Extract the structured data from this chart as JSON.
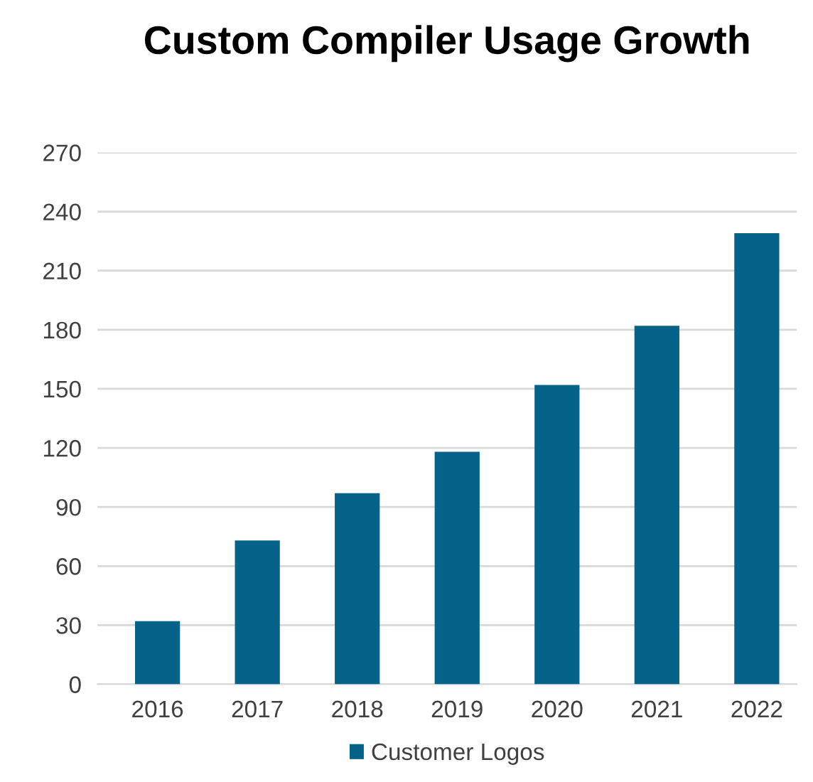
{
  "chart_data": {
    "type": "bar",
    "title": "Custom Compiler Usage Growth",
    "categories": [
      "2016",
      "2017",
      "2018",
      "2019",
      "2020",
      "2021",
      "2022"
    ],
    "series": [
      {
        "name": "Customer Logos",
        "color": "#05638a",
        "values": [
          32,
          73,
          97,
          118,
          152,
          182,
          229
        ]
      }
    ],
    "ylim": [
      0,
      270
    ],
    "yticks": [
      0,
      30,
      60,
      90,
      120,
      150,
      180,
      210,
      240,
      270
    ],
    "grid": "y",
    "legend": "bottom"
  }
}
